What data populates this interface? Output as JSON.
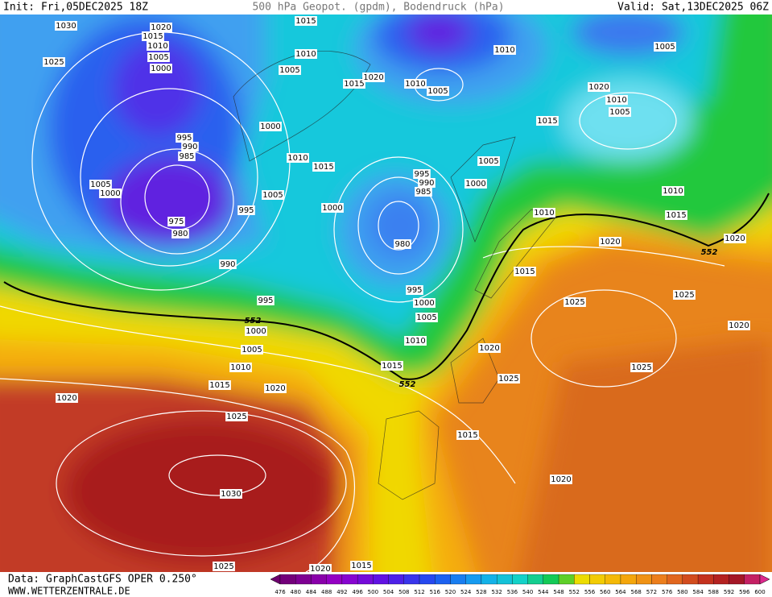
{
  "header": {
    "init": "Init: Fri,05DEC2025 18Z",
    "title": "500 hPa Geopot. (gpdm), Bodendruck (hPa)",
    "valid": "Valid: Sat,13DEC2025 06Z"
  },
  "map": {
    "isobar_labels": [
      "1030",
      "1020",
      "1015",
      "1010",
      "1005",
      "1000",
      "1025",
      "1015",
      "1010",
      "1005",
      "1015",
      "1020",
      "1010",
      "1005",
      "1010",
      "1005",
      "1020",
      "1010",
      "1005",
      "1015",
      "1000",
      "995",
      "990",
      "985",
      "1010",
      "1015",
      "1005",
      "995",
      "990",
      "985",
      "1000",
      "1005",
      "1000",
      "1005",
      "995",
      "1000",
      "1010",
      "1010",
      "1015",
      "975",
      "980",
      "980",
      "1020",
      "1020",
      "990",
      "1015",
      "995",
      "1025",
      "1000",
      "1025",
      "995",
      "1005",
      "1000",
      "1020",
      "1010",
      "1020",
      "1005",
      "1010",
      "1015",
      "1025",
      "1025",
      "1015",
      "1020",
      "1020",
      "1025",
      "1015",
      "1020",
      "1030",
      "1025",
      "1020",
      "1015"
    ],
    "contour_labels": [
      "552",
      "552",
      "552"
    ]
  },
  "footer": {
    "data": "Data: GraphCastGFS OPER 0.250°",
    "site": "WWW.WETTERZENTRALE.DE"
  },
  "colorbar": {
    "labels": [
      476,
      480,
      484,
      488,
      492,
      496,
      500,
      504,
      508,
      512,
      516,
      520,
      524,
      528,
      532,
      536,
      540,
      544,
      548,
      552,
      556,
      560,
      564,
      568,
      572,
      576,
      580,
      584,
      588,
      592,
      596,
      600
    ]
  }
}
